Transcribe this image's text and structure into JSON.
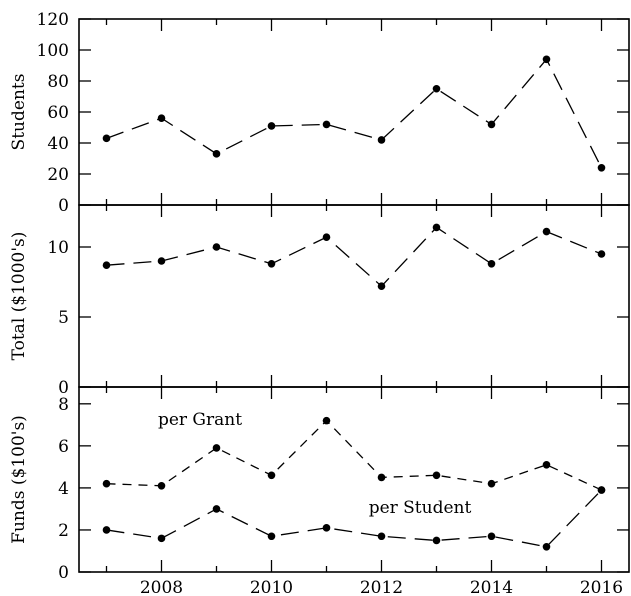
{
  "chart_data": [
    {
      "type": "line",
      "ylabel": "Students",
      "ylim": [
        0,
        120
      ],
      "yticks": [
        0,
        20,
        40,
        60,
        80,
        100,
        120
      ],
      "x": [
        2007,
        2008,
        2009,
        2010,
        2011,
        2012,
        2013,
        2014,
        2015,
        2016
      ],
      "series": [
        {
          "values": [
            43,
            56,
            33,
            51,
            52,
            42,
            75,
            52,
            94,
            24
          ],
          "dash": "long"
        }
      ]
    },
    {
      "type": "line",
      "ylabel": "Total ($1000's)",
      "ylim": [
        0,
        13
      ],
      "yticks": [
        0,
        5,
        10
      ],
      "x": [
        2007,
        2008,
        2009,
        2010,
        2011,
        2012,
        2013,
        2014,
        2015,
        2016
      ],
      "series": [
        {
          "values": [
            8.7,
            9.0,
            10.0,
            8.8,
            10.7,
            7.2,
            11.4,
            8.8,
            11.1,
            9.5
          ],
          "dash": "long"
        }
      ]
    },
    {
      "type": "line",
      "ylabel": "Funds ($100's)",
      "ylim": [
        0,
        8.8
      ],
      "yticks": [
        0,
        2,
        4,
        6,
        8
      ],
      "xlim": [
        2006.5,
        2016.5
      ],
      "xticks": [
        2008,
        2010,
        2012,
        2014,
        2016
      ],
      "x": [
        2007,
        2008,
        2009,
        2010,
        2011,
        2012,
        2013,
        2014,
        2015,
        2016
      ],
      "series": [
        {
          "name": "per Grant",
          "values": [
            4.2,
            4.1,
            5.9,
            4.6,
            7.2,
            4.5,
            4.6,
            4.2,
            5.1,
            3.9
          ],
          "dash": "short"
        },
        {
          "name": "per Student",
          "values": [
            2.0,
            1.6,
            3.0,
            1.7,
            2.1,
            1.7,
            1.5,
            1.7,
            1.2,
            3.9
          ],
          "dash": "long"
        }
      ],
      "annotations": [
        {
          "text": "per Grant",
          "x": 2008.7,
          "y": 7.0
        },
        {
          "text": "per Student",
          "x": 2012.7,
          "y": 2.8
        }
      ]
    }
  ]
}
